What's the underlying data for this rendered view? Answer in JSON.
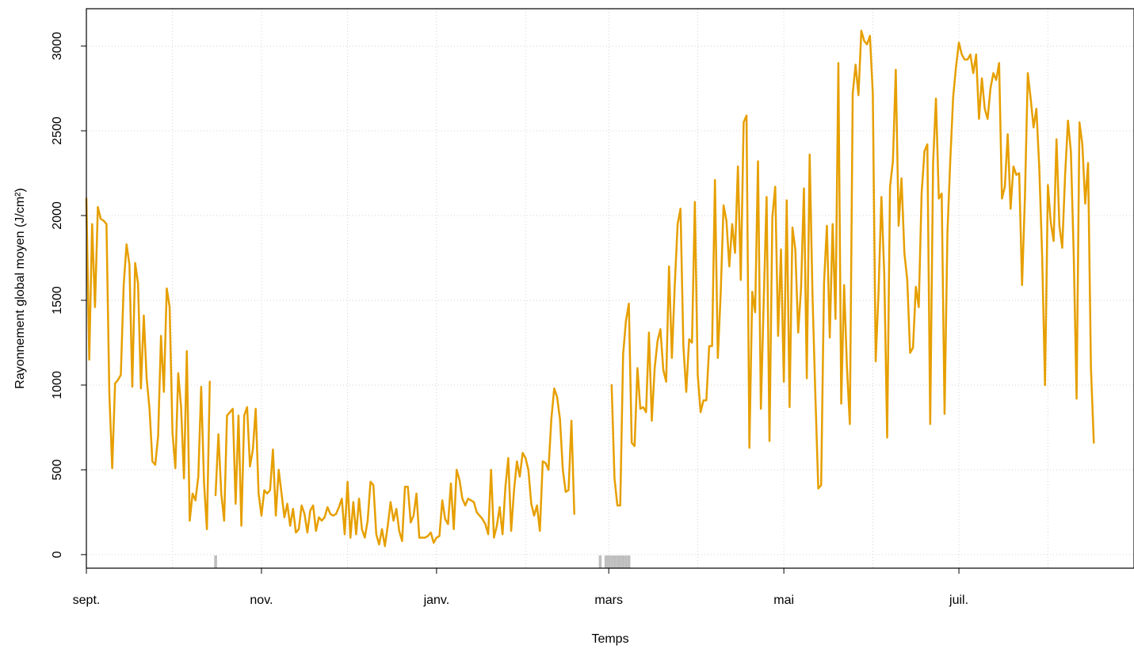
{
  "chart_data": {
    "type": "line",
    "xlabel": "Temps",
    "ylabel": "Rayonnement global moyen (J/cm²)",
    "x_range": [
      "2023-09-01",
      "2024-08-31"
    ],
    "ylim": [
      -80,
      3220
    ],
    "grid": true,
    "line_color": "#E69F00",
    "missing_color": "#BEBEBE",
    "x_ticks": [
      {
        "date": "2023-09-01",
        "label": "sept."
      },
      {
        "date": "2023-11-01",
        "label": "nov."
      },
      {
        "date": "2024-01-01",
        "label": "janv."
      },
      {
        "date": "2024-03-01",
        "label": "mars"
      },
      {
        "date": "2024-05-01",
        "label": "mai"
      },
      {
        "date": "2024-07-01",
        "label": "juil."
      }
    ],
    "y_ticks": [
      0,
      500,
      1000,
      1500,
      2000,
      2500,
      3000
    ],
    "missing_dates": [
      "2023-10-16",
      "2024-02-27",
      "2024-02-29",
      "2024-03-01",
      "2024-03-02",
      "2024-03-03",
      "2024-03-04",
      "2024-03-05",
      "2024-03-06",
      "2024-03-07",
      "2024-03-08"
    ],
    "series": [
      {
        "start_date": "2023-09-01",
        "values": [
          2100,
          1150,
          1950,
          1460,
          2050,
          1980,
          1970,
          1950,
          950,
          510,
          1010,
          1030,
          1060,
          1590,
          1830,
          1710,
          990,
          1720,
          1600,
          980,
          1410,
          1040,
          860,
          550,
          530,
          700,
          1290,
          960,
          1570,
          1460,
          720,
          510,
          1070,
          870,
          450,
          1200,
          200,
          360,
          320,
          460,
          990,
          420,
          150,
          1020,
          null,
          350,
          710,
          360,
          200,
          820,
          840,
          860,
          300,
          820,
          170,
          820,
          870,
          520,
          620,
          860,
          360,
          230,
          380,
          360,
          380,
          620,
          230,
          500,
          360,
          220,
          300,
          170,
          270,
          130,
          150,
          290,
          240,
          130,
          260,
          290,
          140,
          220,
          200,
          220,
          280,
          240,
          230,
          240,
          280,
          330,
          120,
          430,
          100,
          310,
          120,
          330,
          150,
          100,
          200,
          430,
          410,
          120,
          60,
          150,
          50,
          170,
          310,
          200,
          270,
          140,
          80,
          400,
          400,
          190,
          230,
          360,
          100,
          100,
          100,
          110,
          130,
          70,
          100,
          110,
          320,
          210,
          180,
          420,
          150,
          500,
          440,
          330,
          290,
          330,
          320,
          310,
          250,
          230,
          210,
          180,
          120,
          500,
          100,
          170,
          280,
          120,
          400,
          570,
          140,
          380,
          550,
          460,
          600,
          570,
          500,
          300,
          230,
          290,
          140,
          550,
          540,
          500,
          800,
          980,
          930,
          800,
          500,
          370,
          380,
          790,
          240,
          null,
          null,
          null,
          null,
          null,
          null,
          null,
          null,
          null,
          null,
          null,
          null,
          1000,
          450,
          290,
          290,
          1180,
          1380,
          1480,
          660,
          640,
          1100,
          860,
          870,
          840,
          1310,
          790,
          1100,
          1260,
          1330,
          1090,
          1020,
          1700,
          1160,
          1590,
          1950,
          2040,
          1230,
          960,
          1270,
          1250,
          2080,
          1060,
          840,
          910,
          910,
          1230,
          1230,
          2210,
          1160,
          1540,
          2060,
          1970,
          1700,
          1950,
          1780,
          2290,
          1620,
          2550,
          2590,
          630,
          1550,
          1430,
          2320,
          860,
          1500,
          2110,
          670,
          1990,
          2170,
          1290,
          1800,
          1020,
          2090,
          870,
          1930,
          1800,
          1310,
          1570,
          2160,
          1040,
          2360,
          1520,
          930,
          390,
          410,
          1600,
          1940,
          1280,
          1950,
          1390,
          2900,
          890,
          1590,
          1100,
          770,
          2720,
          2890,
          2710,
          3090,
          3030,
          3010,
          3060,
          2720,
          1140,
          1550,
          2110,
          1650,
          690,
          2170,
          2320,
          2860,
          1940,
          2220,
          1780,
          1620,
          1190,
          1220,
          1580,
          1460,
          2130,
          2380,
          2420,
          770,
          2310,
          2690,
          2100,
          2130,
          830,
          1900,
          2330,
          2700,
          2880,
          3020,
          2950,
          2920,
          2920,
          2950,
          2840,
          2950,
          2570,
          2810,
          2630,
          2570,
          2750,
          2840,
          2800,
          2900,
          2100,
          2170,
          2480,
          2040,
          2290,
          2240,
          2250,
          1590,
          2110,
          2840,
          2690,
          2520,
          2630,
          2280,
          1760,
          1000,
          2180,
          1960,
          1850,
          2450,
          1940,
          1810,
          2240,
          2560,
          2380,
          1770,
          920,
          2550,
          2420,
          2070,
          2310,
          1100,
          660
        ]
      }
    ]
  }
}
